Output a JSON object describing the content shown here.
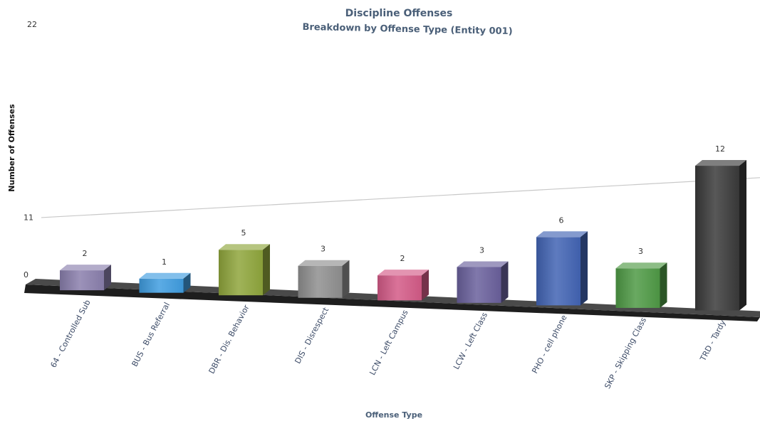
{
  "chart_data": {
    "type": "bar",
    "title": "Discipline Offenses",
    "subtitle": "Breakdown by Offense Type (Entity 001)",
    "xlabel": "Offense Type",
    "ylabel": "Number of Offenses",
    "y_ticks": [
      "0",
      "11",
      "22"
    ],
    "ylim": [
      0,
      22
    ],
    "grid": true,
    "three_d": true,
    "categories": [
      "64 - Controlled Sub",
      "BUS - Bus Referral",
      "DBR - Dis. Behavior",
      "DIS - Disrespect",
      "LCN - Left Campus",
      "LCW - Left Class",
      "PHO - cell phone",
      "SKP - Skipping Class",
      "TRD - Tardy"
    ],
    "values": [
      2,
      1,
      5,
      3,
      2,
      3,
      6,
      3,
      12
    ],
    "colors": [
      "#8a7fad",
      "#3f9de0",
      "#8fa63c",
      "#8f8f8f",
      "#d45a87",
      "#6a609c",
      "#4264b4",
      "#4f9a45",
      "#3a3a3a"
    ]
  }
}
